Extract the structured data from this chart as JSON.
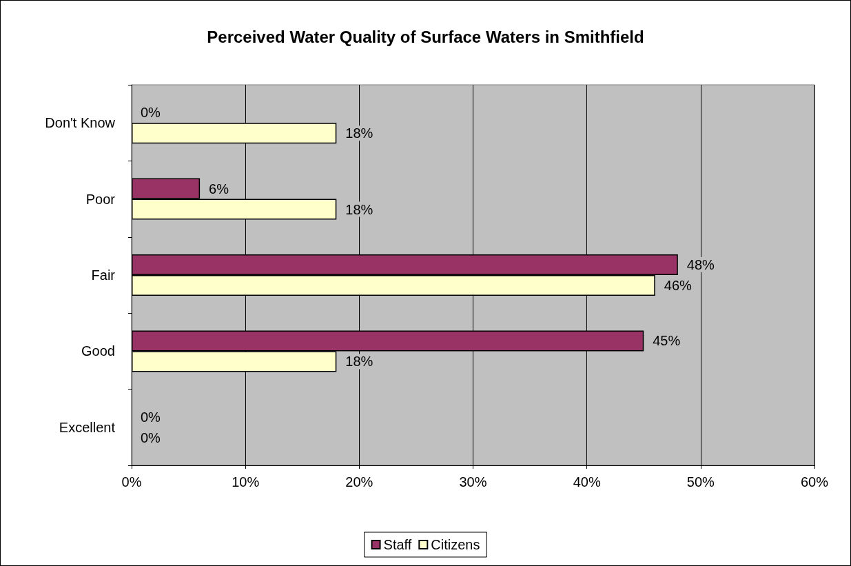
{
  "chart_data": {
    "type": "bar",
    "orientation": "horizontal",
    "title": "Perceived Water Quality of Surface Waters in Smithfield",
    "categories": [
      "Don't Know",
      "Poor",
      "Fair",
      "Good",
      "Excellent"
    ],
    "series": [
      {
        "name": "Staff",
        "color": "#993366",
        "values": [
          0,
          6,
          48,
          45,
          0
        ],
        "value_labels": [
          "0%",
          "6%",
          "48%",
          "45%",
          "0%"
        ]
      },
      {
        "name": "Citizens",
        "color": "#ffffcc",
        "values": [
          18,
          18,
          46,
          18,
          0
        ],
        "value_labels": [
          "18%",
          "18%",
          "46%",
          "18%",
          "0%"
        ]
      }
    ],
    "xlim": [
      0,
      60
    ],
    "xticks": [
      {
        "value": 0,
        "label": "0%"
      },
      {
        "value": 10,
        "label": "10%"
      },
      {
        "value": 20,
        "label": "20%"
      },
      {
        "value": 30,
        "label": "30%"
      },
      {
        "value": 40,
        "label": "40%"
      },
      {
        "value": 50,
        "label": "50%"
      },
      {
        "value": 60,
        "label": "60%"
      }
    ],
    "grid": "x",
    "legend": "bottom"
  }
}
